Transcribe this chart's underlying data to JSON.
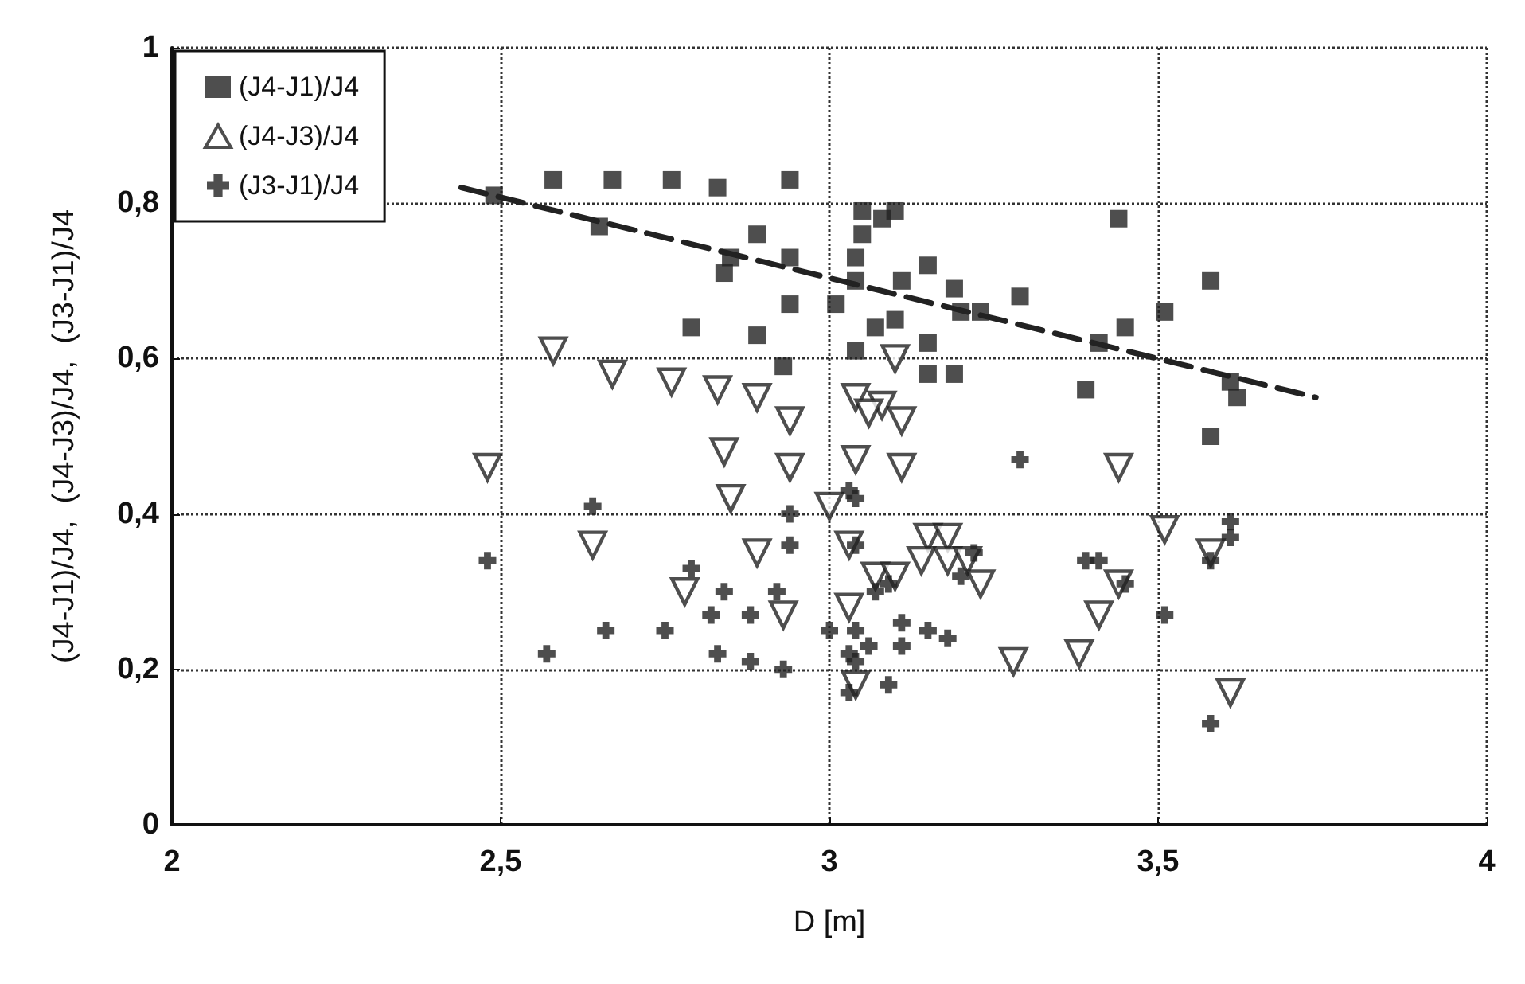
{
  "chart_data": {
    "type": "scatter",
    "xlabel": "D [m]",
    "ylabel": "(J4-J1)/J4,  (J4-J3)/J4,  (J3-J1)/J4",
    "xlim": [
      2,
      4
    ],
    "xticks": [
      2,
      {
        "value": 2.5,
        "label": "2,5"
      },
      3,
      {
        "value": 3.5,
        "label": "3,5"
      },
      4
    ],
    "ylim": [
      0,
      1
    ],
    "yticks": [
      0,
      {
        "value": 0.2,
        "label": "0,2"
      },
      {
        "value": 0.4,
        "label": "0,4"
      },
      {
        "value": 0.6,
        "label": "0,6"
      },
      {
        "value": 0.8,
        "label": "0,8"
      },
      1
    ],
    "grid": true,
    "legend": "top left",
    "series": [
      {
        "name": "(J4-J1)/J4",
        "color": "#222222",
        "marker": "square",
        "x": [
          2.49,
          2.58,
          2.67,
          2.76,
          2.83,
          2.94,
          2.65,
          2.89,
          2.85,
          2.84,
          2.94,
          3.01,
          2.94,
          2.79,
          2.89,
          2.93,
          3.05,
          3.1,
          3.08,
          3.05,
          3.04,
          3.04,
          3.15,
          3.11,
          3.19,
          3.2,
          3.23,
          3.29,
          3.44,
          3.58,
          3.51,
          3.41,
          3.45,
          3.1,
          3.07,
          3.04,
          3.15,
          3.15,
          3.19,
          3.39,
          3.61,
          3.62,
          3.58
        ],
        "values": [
          0.81,
          0.83,
          0.83,
          0.83,
          0.82,
          0.83,
          0.77,
          0.76,
          0.73,
          0.71,
          0.73,
          0.67,
          0.67,
          0.64,
          0.63,
          0.59,
          0.79,
          0.79,
          0.78,
          0.76,
          0.73,
          0.7,
          0.72,
          0.7,
          0.69,
          0.66,
          0.66,
          0.68,
          0.78,
          0.7,
          0.66,
          0.62,
          0.64,
          0.65,
          0.64,
          0.61,
          0.62,
          0.58,
          0.58,
          0.56,
          0.57,
          0.55,
          0.5
        ]
      },
      {
        "name": "(J4-J3)/J4",
        "color": "#222222",
        "marker": "triangle",
        "x": [
          2.48,
          2.58,
          2.67,
          2.76,
          2.83,
          2.89,
          2.94,
          2.84,
          2.94,
          2.85,
          3.0,
          2.64,
          2.89,
          2.78,
          2.93,
          3.03,
          3.03,
          3.1,
          3.04,
          3.08,
          3.06,
          3.11,
          3.04,
          3.11,
          3.44,
          3.07,
          3.1,
          3.15,
          3.18,
          3.14,
          3.18,
          3.21,
          3.23,
          3.04,
          3.28,
          3.41,
          3.38,
          3.44,
          3.51,
          3.58,
          3.61
        ],
        "values": [
          0.46,
          0.61,
          0.58,
          0.57,
          0.56,
          0.55,
          0.52,
          0.48,
          0.46,
          0.42,
          0.41,
          0.36,
          0.35,
          0.3,
          0.27,
          0.28,
          0.36,
          0.6,
          0.55,
          0.54,
          0.53,
          0.52,
          0.47,
          0.46,
          0.46,
          0.32,
          0.32,
          0.37,
          0.37,
          0.34,
          0.34,
          0.34,
          0.31,
          0.18,
          0.21,
          0.27,
          0.22,
          0.31,
          0.38,
          0.35,
          0.17
        ]
      },
      {
        "name": "(J3-J1)/J4",
        "color": "#222222",
        "marker": "cross",
        "x": [
          2.48,
          2.64,
          2.57,
          2.66,
          2.75,
          2.79,
          2.84,
          2.82,
          2.88,
          2.92,
          2.94,
          2.94,
          2.83,
          2.88,
          2.93,
          3.03,
          3.03,
          3.03,
          3.04,
          3.04,
          3.07,
          3.09,
          3.0,
          3.04,
          3.06,
          3.04,
          3.11,
          3.11,
          3.15,
          3.18,
          3.09,
          3.22,
          3.2,
          3.29,
          3.39,
          3.41,
          3.45,
          3.51,
          3.58,
          3.61,
          3.61,
          3.58
        ],
        "values": [
          0.34,
          0.41,
          0.22,
          0.25,
          0.25,
          0.33,
          0.3,
          0.27,
          0.27,
          0.3,
          0.4,
          0.36,
          0.22,
          0.21,
          0.2,
          0.43,
          0.22,
          0.17,
          0.36,
          0.42,
          0.3,
          0.31,
          0.25,
          0.25,
          0.23,
          0.21,
          0.26,
          0.23,
          0.25,
          0.24,
          0.18,
          0.35,
          0.32,
          0.47,
          0.34,
          0.34,
          0.31,
          0.27,
          0.34,
          0.39,
          0.37,
          0.13
        ]
      },
      {
        "type": "line",
        "color": "#222222",
        "marker": "none",
        "line_style": "dashed",
        "x": [
          2.44,
          3.74
        ],
        "values": [
          0.82,
          0.55
        ]
      }
    ]
  }
}
